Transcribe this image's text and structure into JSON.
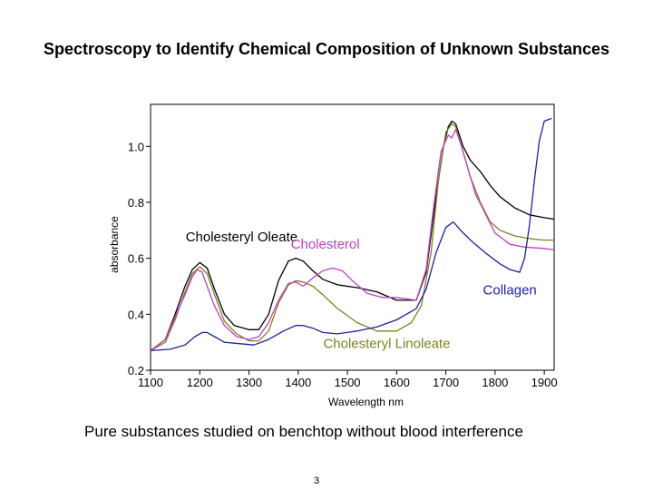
{
  "slide": {
    "title": "Spectroscopy to Identify Chemical Composition of Unknown Substances",
    "caption": "Pure substances studied on benchtop without blood interference",
    "page_number": "3"
  },
  "chart_data": {
    "type": "line",
    "title": "",
    "xlabel": "Wavelength nm",
    "ylabel": "absorbance",
    "xlim": [
      1100,
      1920
    ],
    "ylim": [
      0.2,
      1.15
    ],
    "xticks": [
      1100,
      1200,
      1300,
      1400,
      1500,
      1600,
      1700,
      1800,
      1900
    ],
    "yticks": [
      0.2,
      0.4,
      0.6,
      0.8,
      1.0
    ],
    "ytick_labels": [
      "0.2",
      "0.4",
      "0.6",
      "0.8",
      "1.0"
    ],
    "grid": false,
    "legend": "none (inline annotations)",
    "annotations": [
      {
        "text": "Cholesteryl Oleate",
        "x": 1285,
        "y": 0.66,
        "color": "#000000"
      },
      {
        "text": "Cholesterol",
        "x": 1455,
        "y": 0.635,
        "color": "#c040c0"
      },
      {
        "text": "Collagen",
        "x": 1830,
        "y": 0.47,
        "color": "#2020a0"
      },
      {
        "text": "Cholesteryl Linoleate",
        "x": 1580,
        "y": 0.28,
        "color": "#808020"
      }
    ],
    "series": [
      {
        "name": "Cholesteryl Oleate",
        "color": "#000000",
        "x": [
          1100,
          1130,
          1150,
          1170,
          1185,
          1200,
          1215,
          1230,
          1250,
          1270,
          1300,
          1320,
          1340,
          1360,
          1380,
          1395,
          1410,
          1430,
          1450,
          1480,
          1520,
          1560,
          1600,
          1640,
          1660,
          1680,
          1695,
          1705,
          1712,
          1720,
          1735,
          1750,
          1770,
          1790,
          1810,
          1840,
          1870,
          1900,
          1920
        ],
        "y": [
          0.27,
          0.31,
          0.4,
          0.5,
          0.56,
          0.585,
          0.565,
          0.49,
          0.4,
          0.36,
          0.345,
          0.345,
          0.4,
          0.52,
          0.59,
          0.6,
          0.59,
          0.555,
          0.525,
          0.505,
          0.495,
          0.48,
          0.45,
          0.45,
          0.55,
          0.82,
          1.0,
          1.07,
          1.09,
          1.08,
          1.0,
          0.95,
          0.91,
          0.86,
          0.82,
          0.78,
          0.755,
          0.745,
          0.74
        ]
      },
      {
        "name": "Cholesteryl Linoleate",
        "color": "#808020",
        "x": [
          1100,
          1130,
          1150,
          1170,
          1185,
          1200,
          1215,
          1230,
          1250,
          1275,
          1300,
          1320,
          1340,
          1360,
          1380,
          1395,
          1410,
          1430,
          1450,
          1480,
          1520,
          1560,
          1600,
          1630,
          1650,
          1670,
          1685,
          1700,
          1712,
          1720,
          1735,
          1750,
          1770,
          1790,
          1810,
          1840,
          1870,
          1900,
          1920
        ],
        "y": [
          0.27,
          0.3,
          0.38,
          0.48,
          0.545,
          0.57,
          0.545,
          0.47,
          0.375,
          0.33,
          0.305,
          0.305,
          0.34,
          0.44,
          0.505,
          0.52,
          0.515,
          0.5,
          0.47,
          0.42,
          0.37,
          0.34,
          0.34,
          0.37,
          0.43,
          0.62,
          0.88,
          1.05,
          1.08,
          1.07,
          0.98,
          0.89,
          0.8,
          0.73,
          0.7,
          0.68,
          0.67,
          0.665,
          0.665
        ]
      },
      {
        "name": "Cholesterol",
        "color": "#c040c0",
        "x": [
          1100,
          1130,
          1150,
          1170,
          1185,
          1195,
          1205,
          1215,
          1230,
          1250,
          1275,
          1300,
          1320,
          1340,
          1360,
          1380,
          1395,
          1410,
          1430,
          1450,
          1470,
          1490,
          1510,
          1540,
          1570,
          1600,
          1640,
          1660,
          1675,
          1690,
          1705,
          1712,
          1720,
          1730,
          1745,
          1760,
          1780,
          1800,
          1830,
          1860,
          1900,
          1920
        ],
        "y": [
          0.27,
          0.31,
          0.39,
          0.47,
          0.535,
          0.56,
          0.55,
          0.5,
          0.43,
          0.36,
          0.32,
          0.31,
          0.32,
          0.37,
          0.45,
          0.51,
          0.515,
          0.5,
          0.53,
          0.555,
          0.565,
          0.555,
          0.52,
          0.475,
          0.46,
          0.46,
          0.45,
          0.56,
          0.78,
          0.98,
          1.04,
          1.03,
          1.06,
          1.01,
          0.92,
          0.83,
          0.76,
          0.69,
          0.65,
          0.64,
          0.635,
          0.63
        ]
      },
      {
        "name": "Collagen",
        "color": "#2020a0",
        "x": [
          1100,
          1140,
          1170,
          1190,
          1205,
          1215,
          1230,
          1250,
          1280,
          1310,
          1340,
          1370,
          1395,
          1410,
          1430,
          1450,
          1480,
          1520,
          1560,
          1600,
          1640,
          1660,
          1680,
          1700,
          1715,
          1730,
          1750,
          1780,
          1810,
          1830,
          1850,
          1860,
          1870,
          1880,
          1890,
          1900,
          1915
        ],
        "y": [
          0.27,
          0.275,
          0.29,
          0.32,
          0.335,
          0.335,
          0.32,
          0.3,
          0.295,
          0.29,
          0.31,
          0.34,
          0.36,
          0.36,
          0.35,
          0.335,
          0.33,
          0.34,
          0.355,
          0.38,
          0.42,
          0.49,
          0.62,
          0.71,
          0.73,
          0.7,
          0.665,
          0.62,
          0.58,
          0.56,
          0.55,
          0.6,
          0.72,
          0.88,
          1.02,
          1.09,
          1.1
        ]
      }
    ]
  }
}
